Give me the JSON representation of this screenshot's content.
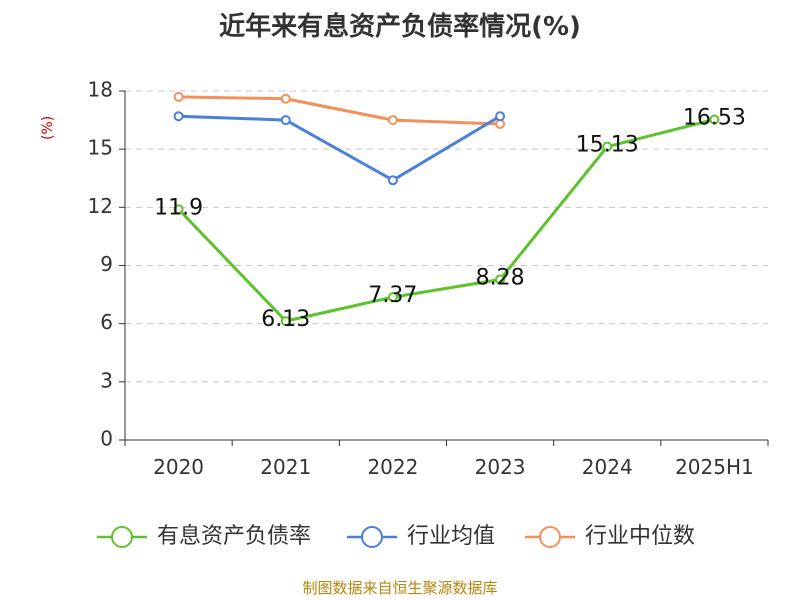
{
  "chart_data": {
    "type": "line",
    "title": "近年来有息资产负债率情况(%)",
    "ylabel": "(%)",
    "xlabel": "",
    "categories": [
      "2020",
      "2021",
      "2022",
      "2023",
      "2024",
      "2025H1"
    ],
    "ylim": [
      0,
      18
    ],
    "yticks": [
      0,
      3,
      6,
      9,
      12,
      15,
      18
    ],
    "grid": true,
    "legend_position": "bottom",
    "series": [
      {
        "name": "有息资产负债率",
        "color": "#5cc32b",
        "values": [
          11.9,
          6.13,
          7.37,
          8.28,
          15.13,
          16.53
        ],
        "labels": [
          "11.9",
          "6.13",
          "7.37",
          "8.28",
          "15.13",
          "16.53"
        ]
      },
      {
        "name": "行业均值",
        "color": "#4a7fdb",
        "values": [
          16.7,
          16.5,
          13.4,
          16.7,
          null,
          null
        ]
      },
      {
        "name": "行业中位数",
        "color": "#f5905a",
        "values": [
          17.7,
          17.6,
          16.5,
          16.3,
          null,
          null
        ]
      }
    ]
  },
  "source_text": "制图数据来自恒生聚源数据库"
}
